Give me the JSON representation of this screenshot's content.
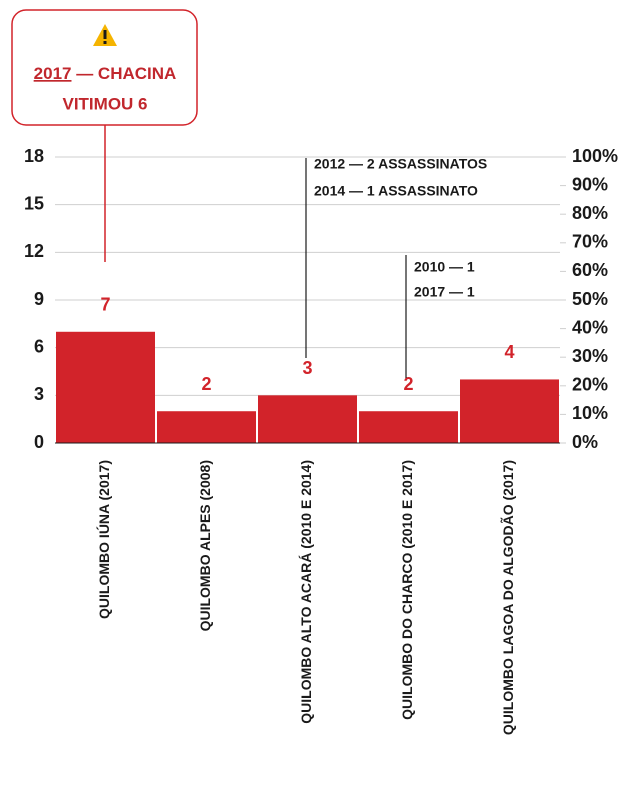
{
  "chart_data": {
    "type": "bar",
    "categories": [
      "QUILOMBO IÚNA (2017)",
      "QUILOMBO ALPES (2008)",
      "QUILOMBO ALTO ACARÁ (2010 E 2014)",
      "QUILOMBO DO CHARCO (2010 E 2017)",
      "QUILOMBO LAGOA DO ALGODÃO (2017)"
    ],
    "values": [
      7,
      2,
      3,
      2,
      4
    ],
    "color": "#d2232a",
    "ylim": [
      0,
      18
    ],
    "yticks": [
      0,
      3,
      6,
      9,
      12,
      15,
      18
    ],
    "y2lim": [
      0,
      100
    ],
    "y2ticks": [
      {
        "value": 0,
        "label": "0%"
      },
      {
        "value": 10,
        "label": "10%"
      },
      {
        "value": 20,
        "label": "20%"
      },
      {
        "value": 30,
        "label": "30%"
      },
      {
        "value": 40,
        "label": "40%"
      },
      {
        "value": 50,
        "label": "50%"
      },
      {
        "value": 60,
        "label": "60%"
      },
      {
        "value": 70,
        "label": "70%"
      },
      {
        "value": 80,
        "label": "80%"
      },
      {
        "value": 90,
        "label": "90%"
      },
      {
        "value": 100,
        "label": "100%"
      }
    ],
    "grid": true,
    "callout": {
      "year": "2017",
      "text": " — CHACINA",
      "text2": "VITIMOU 6"
    },
    "annotations": [
      {
        "lines": [
          "2012 — 2 ASSASSINATOS",
          "2014 — 1 ASSASSINATO"
        ]
      },
      {
        "lines": [
          "2010 — 1",
          "2017 — 1"
        ]
      }
    ]
  }
}
